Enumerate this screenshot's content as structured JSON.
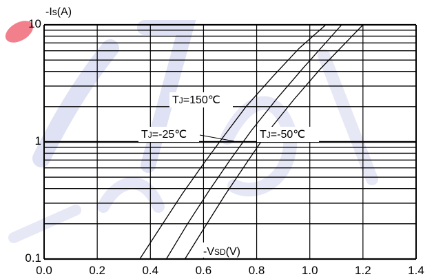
{
  "chart_data": {
    "type": "line",
    "title": "",
    "xlabel": "-VSD(V)",
    "ylabel": "-Is(A)",
    "xlim": [
      0.0,
      1.4
    ],
    "ylim": [
      0.1,
      10
    ],
    "y_scale": "log",
    "grid": true,
    "x_ticks": [
      "0.0",
      "0.2",
      "0.4",
      "0.6",
      "0.8",
      "1.0",
      "1.2",
      "1.4"
    ],
    "y_ticks": [
      "0.1",
      "1",
      "10"
    ],
    "series": [
      {
        "name": "TJ=150℃",
        "x": [
          0.36,
          0.44,
          0.52,
          0.6,
          0.68,
          0.76,
          0.86,
          0.96,
          1.06
        ],
        "y": [
          0.1,
          0.19,
          0.36,
          0.65,
          1.15,
          2.0,
          3.6,
          6.3,
          10
        ]
      },
      {
        "name": "TJ=-25℃",
        "x": [
          0.46,
          0.54,
          0.62,
          0.7,
          0.78,
          0.88,
          0.98,
          1.12
        ],
        "y": [
          0.1,
          0.2,
          0.38,
          0.7,
          1.25,
          2.4,
          4.4,
          10
        ]
      },
      {
        "name": "TJ=-50℃",
        "x": [
          0.53,
          0.6,
          0.68,
          0.76,
          0.84,
          0.94,
          1.04,
          1.2
        ],
        "y": [
          0.1,
          0.18,
          0.35,
          0.65,
          1.2,
          2.3,
          4.2,
          10
        ]
      }
    ],
    "annotations": [
      {
        "label_key": "TJ=150℃",
        "main": "T",
        "sub": "J",
        "rest": "=150℃"
      },
      {
        "label_key": "TJ=-25℃",
        "main": "T",
        "sub": "J",
        "rest": "=-25℃"
      },
      {
        "label_key": "TJ=-50℃",
        "main": "T",
        "sub": "J",
        "rest": "=-50℃"
      }
    ],
    "xlabel_parts": {
      "pre": "-V",
      "sub": "SD",
      "post": "(V)"
    },
    "ylabel_parts": {
      "pre": "-I",
      "sub": "s",
      "post": "(A)"
    },
    "watermark_color": "#3b45b8",
    "watermark_accent": "#f06a78"
  }
}
